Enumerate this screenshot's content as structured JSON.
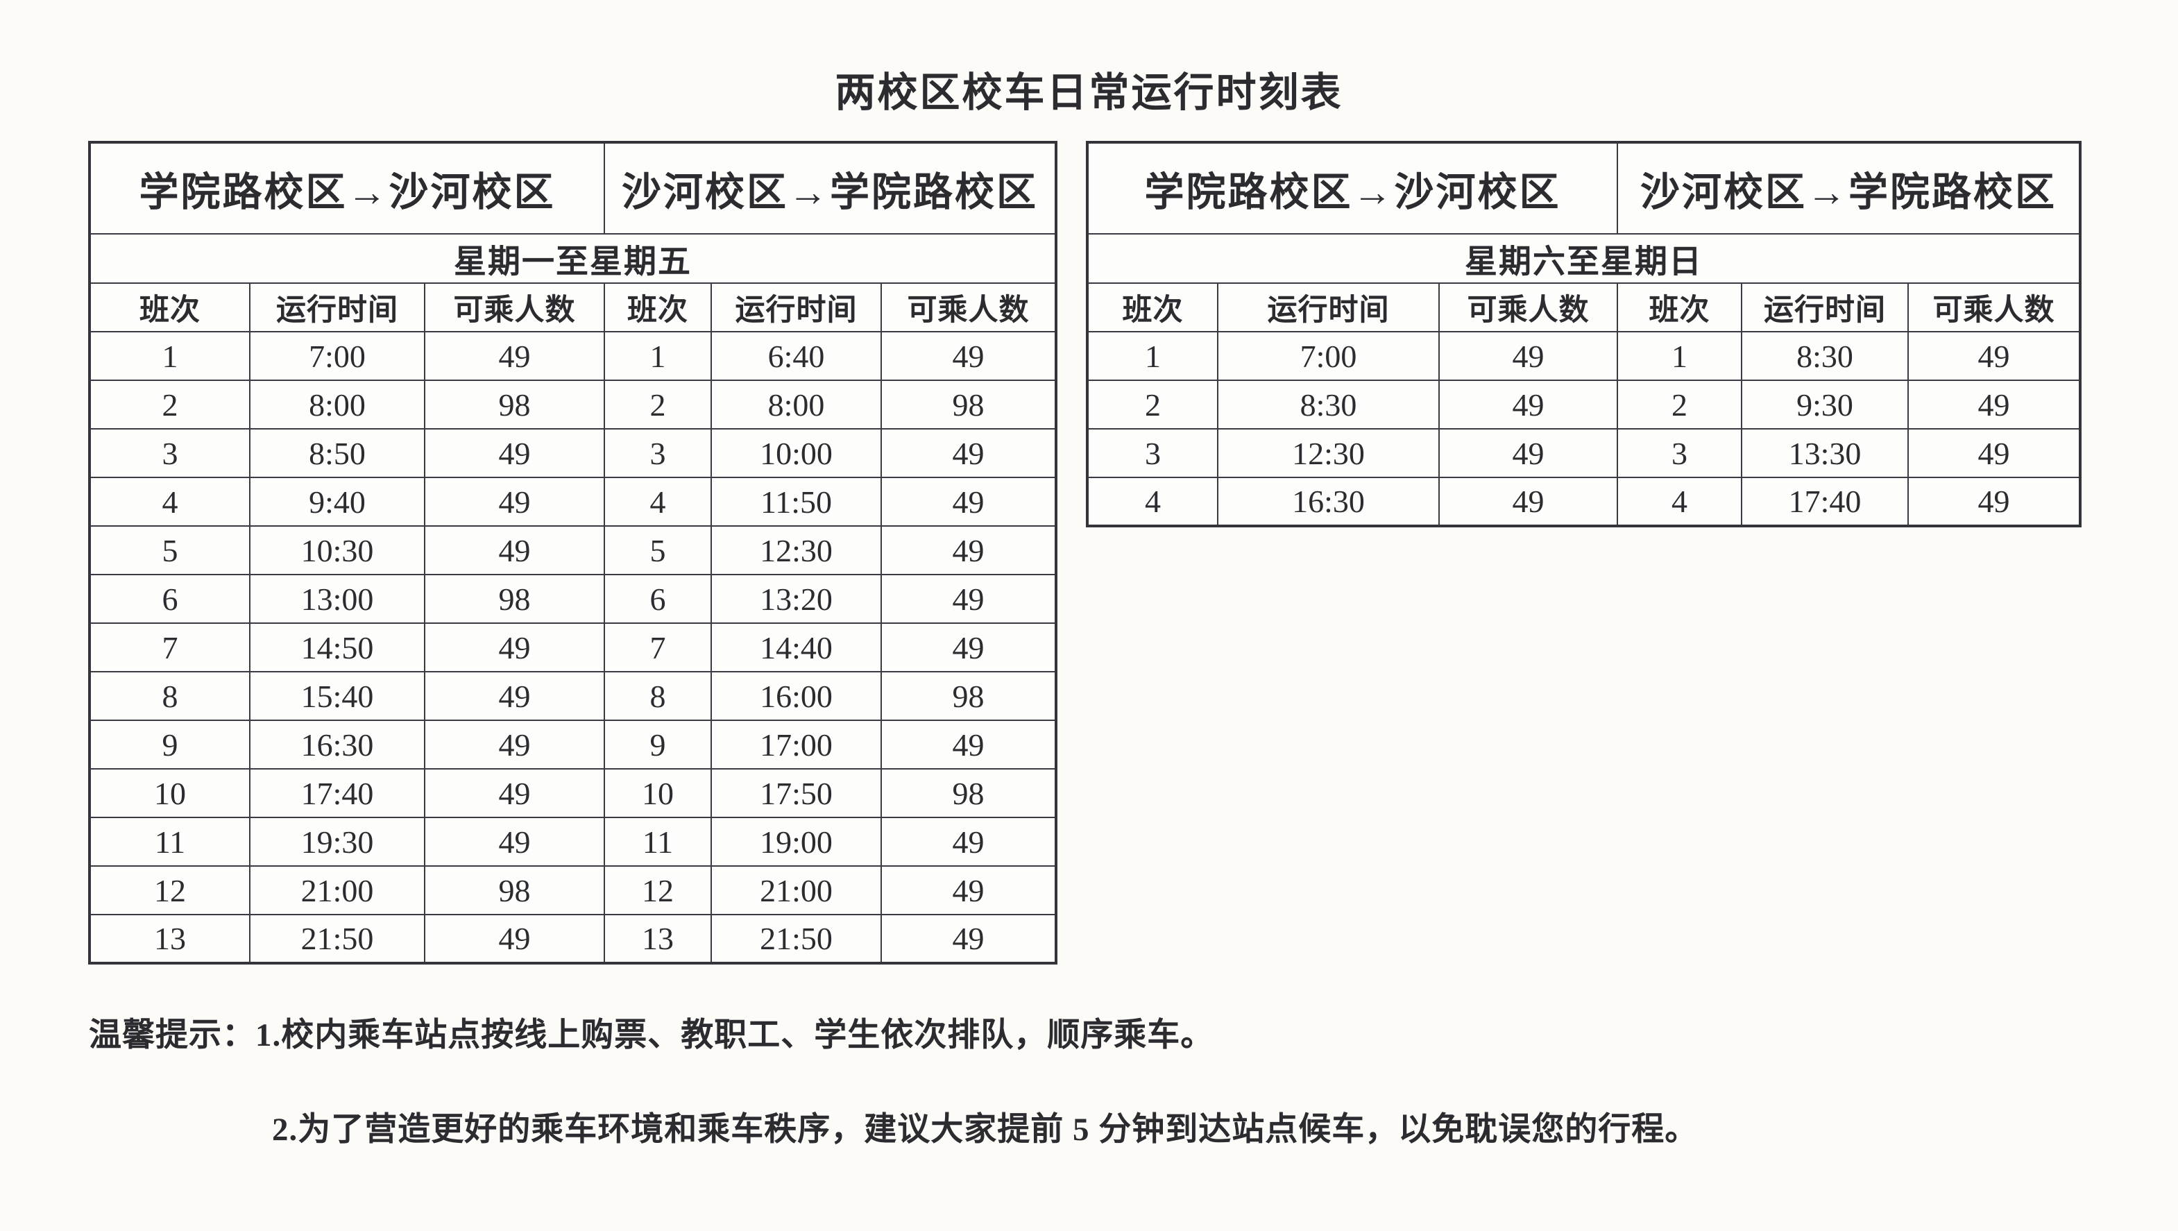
{
  "page": {
    "title": "两校区校车日常运行时刻表",
    "notes": {
      "prefix": "温馨提示：",
      "items": [
        "1.校内乘车站点按线上购票、教职工、学生依次排队，顺序乘车。",
        "2.为了营造更好的乘车环境和乘车秩序，建议大家提前 5 分钟到达站点候车，以免耽误您的行程。"
      ]
    }
  },
  "tables": [
    {
      "id": "weekday",
      "route_headers": [
        "学院路校区→沙河校区",
        "沙河校区→学院路校区"
      ],
      "period": "星期一至星期五",
      "column_headers": [
        "班次",
        "运行时间",
        "可乘人数",
        "班次",
        "运行时间",
        "可乘人数"
      ],
      "rows": [
        [
          "1",
          "7:00",
          "49",
          "1",
          "6:40",
          "49"
        ],
        [
          "2",
          "8:00",
          "98",
          "2",
          "8:00",
          "98"
        ],
        [
          "3",
          "8:50",
          "49",
          "3",
          "10:00",
          "49"
        ],
        [
          "4",
          "9:40",
          "49",
          "4",
          "11:50",
          "49"
        ],
        [
          "5",
          "10:30",
          "49",
          "5",
          "12:30",
          "49"
        ],
        [
          "6",
          "13:00",
          "98",
          "6",
          "13:20",
          "49"
        ],
        [
          "7",
          "14:50",
          "49",
          "7",
          "14:40",
          "49"
        ],
        [
          "8",
          "15:40",
          "49",
          "8",
          "16:00",
          "98"
        ],
        [
          "9",
          "16:30",
          "49",
          "9",
          "17:00",
          "49"
        ],
        [
          "10",
          "17:40",
          "49",
          "10",
          "17:50",
          "98"
        ],
        [
          "11",
          "19:30",
          "49",
          "11",
          "19:00",
          "49"
        ],
        [
          "12",
          "21:00",
          "98",
          "12",
          "21:00",
          "49"
        ],
        [
          "13",
          "21:50",
          "49",
          "13",
          "21:50",
          "49"
        ]
      ]
    },
    {
      "id": "weekend",
      "route_headers": [
        "学院路校区→沙河校区",
        "沙河校区→学院路校区"
      ],
      "period": "星期六至星期日",
      "column_headers": [
        "班次",
        "运行时间",
        "可乘人数",
        "班次",
        "运行时间",
        "可乘人数"
      ],
      "rows": [
        [
          "1",
          "7:00",
          "49",
          "1",
          "8:30",
          "49"
        ],
        [
          "2",
          "8:30",
          "49",
          "2",
          "9:30",
          "49"
        ],
        [
          "3",
          "12:30",
          "49",
          "3",
          "13:30",
          "49"
        ],
        [
          "4",
          "16:30",
          "49",
          "4",
          "17:40",
          "49"
        ]
      ]
    }
  ]
}
